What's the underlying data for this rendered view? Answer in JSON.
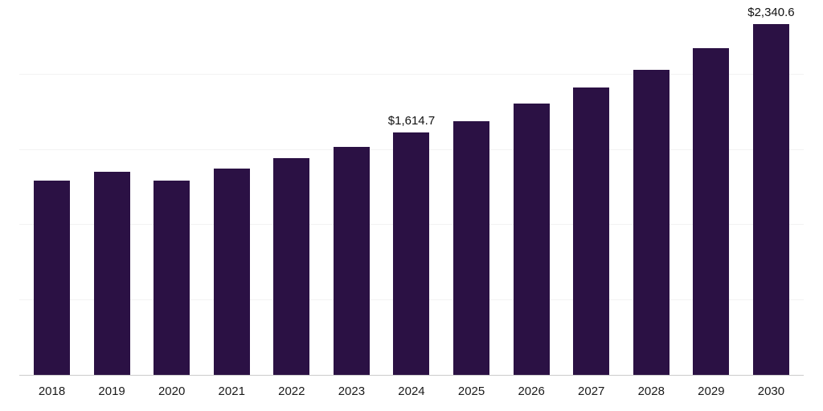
{
  "chart_data": {
    "type": "bar",
    "title": "",
    "xlabel": "",
    "ylabel": "",
    "categories": [
      "2018",
      "2019",
      "2020",
      "2021",
      "2022",
      "2023",
      "2024",
      "2025",
      "2026",
      "2027",
      "2028",
      "2029",
      "2030"
    ],
    "values": [
      1293,
      1352,
      1298,
      1378,
      1448,
      1523,
      1614.7,
      1693,
      1811,
      1918,
      2035,
      2180,
      2340.6
    ],
    "data_labels": [
      null,
      null,
      null,
      null,
      null,
      null,
      "$1,614.7",
      null,
      null,
      null,
      null,
      null,
      "$2,340.6"
    ],
    "ylim": [
      0,
      2500
    ],
    "gridline_step": 500,
    "grid": true,
    "legend_position": "none",
    "bar_color": "#2B1144",
    "gridline_color": "#F2F2F2",
    "axis_line_color": "#CCCCCC",
    "label_color": "#111111",
    "tick_label_color": "#1A1A1A"
  }
}
